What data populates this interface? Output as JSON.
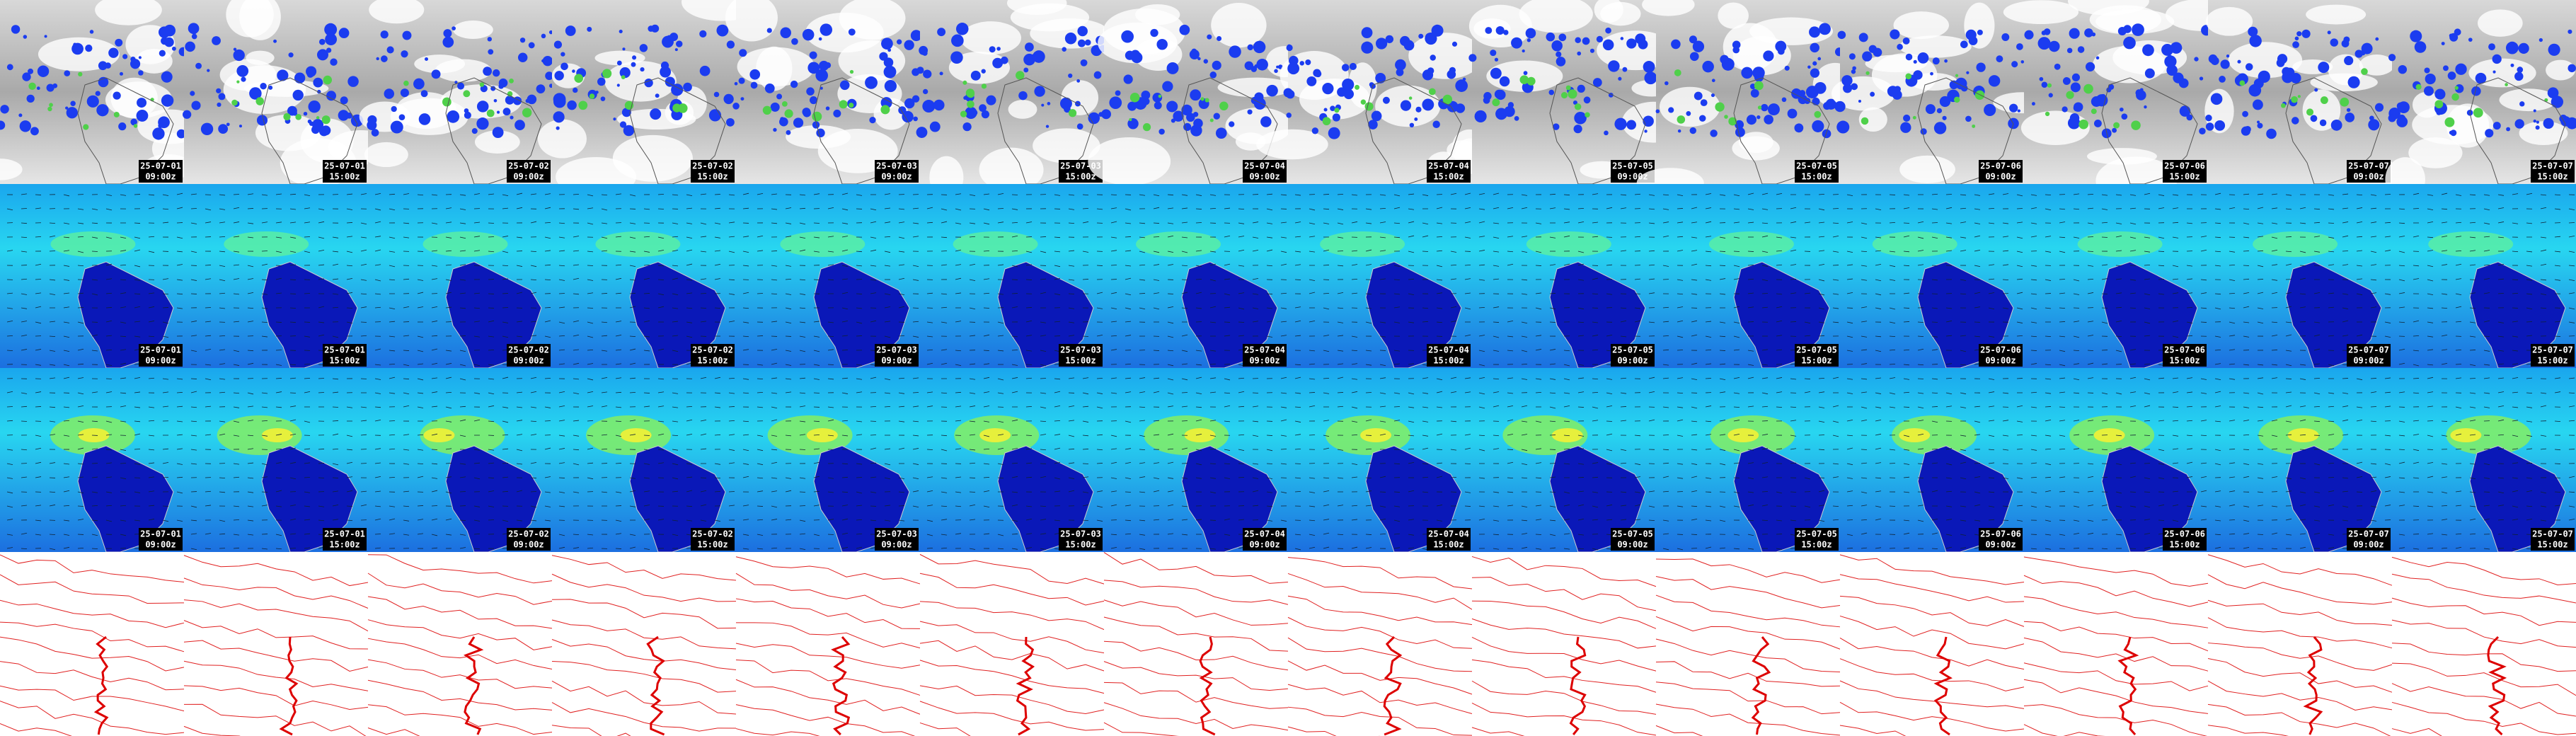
{
  "panels": {
    "timestamps": [
      {
        "date": "25-07-01",
        "time": "09:00z"
      },
      {
        "date": "25-07-01",
        "time": "15:00z"
      },
      {
        "date": "25-07-02",
        "time": "09:00z"
      },
      {
        "date": "25-07-02",
        "time": "15:00z"
      },
      {
        "date": "25-07-03",
        "time": "09:00z"
      },
      {
        "date": "25-07-03",
        "time": "15:00z"
      },
      {
        "date": "25-07-04",
        "time": "09:00z"
      },
      {
        "date": "25-07-04",
        "time": "15:00z"
      },
      {
        "date": "25-07-05",
        "time": "09:00z"
      },
      {
        "date": "25-07-05",
        "time": "15:00z"
      },
      {
        "date": "25-07-06",
        "time": "09:00z"
      },
      {
        "date": "25-07-06",
        "time": "15:00z"
      },
      {
        "date": "25-07-07",
        "time": "09:00z"
      },
      {
        "date": "25-07-07",
        "time": "15:00z"
      }
    ]
  }
}
